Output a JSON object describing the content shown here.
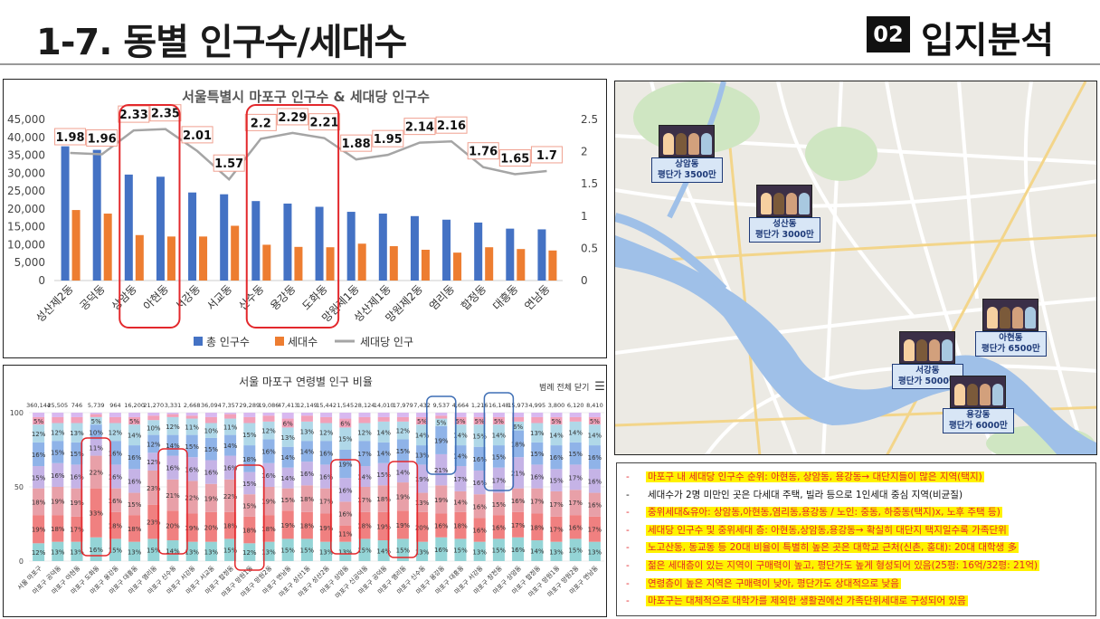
{
  "header": {
    "title": "1-7. 동별 인구수/세대수",
    "badge": "02",
    "section": "입지분석"
  },
  "chart_data": [
    {
      "type": "bar",
      "title": "서울특별시 마포구 인구수 & 세대당 인구수",
      "categories": [
        "성산제2동",
        "공덕동",
        "상암동",
        "아현동",
        "서강동",
        "서교동",
        "신수동",
        "용강동",
        "도화동",
        "망원제1동",
        "성산제1동",
        "망원제2동",
        "염리동",
        "합정동",
        "대흥동",
        "연남동"
      ],
      "series": [
        {
          "name": "총 인구수",
          "color": "#4472c4",
          "values": [
            37500,
            36500,
            29600,
            29000,
            24600,
            24100,
            22200,
            21500,
            20600,
            19200,
            18700,
            18000,
            17000,
            16200,
            14500,
            14300
          ]
        },
        {
          "name": "세대수",
          "color": "#ed7d31",
          "values": [
            19700,
            18700,
            12700,
            12300,
            12300,
            15300,
            10000,
            9400,
            9300,
            10300,
            9600,
            8600,
            7800,
            9300,
            8800,
            8400
          ]
        },
        {
          "name": "세대당 인구",
          "color": "#a5a5a5",
          "axis": "right",
          "values": [
            1.98,
            1.96,
            2.33,
            2.35,
            2.01,
            1.57,
            2.2,
            2.29,
            2.21,
            1.88,
            1.95,
            2.14,
            2.16,
            1.76,
            1.65,
            1.7
          ]
        }
      ],
      "value_labels": [
        "1.98",
        "1.96",
        "2.33",
        "2.35",
        "2.01",
        "1.57",
        "2.2",
        "2.29",
        "2.21",
        "1.88",
        "1.95",
        "2.14",
        "2.16",
        "1.76",
        "1.65",
        "1.7"
      ],
      "ylim": [
        0,
        45000
      ],
      "y_ticks": [
        "0",
        "5,000",
        "10,000",
        "15,000",
        "20,000",
        "25,000",
        "30,000",
        "35,000",
        "40,000",
        "45,000"
      ],
      "y2lim": [
        0,
        2.5
      ],
      "y2_ticks": [
        "0",
        "0.5",
        "1",
        "1.5",
        "2",
        "2.5"
      ],
      "legend": "bottom",
      "highlight_color": "#e3282c"
    },
    {
      "type": "bar",
      "title": "서울 마포구 연령별 인구 비율",
      "button_label": "범례 전체 닫기",
      "y_ticks": [
        "0",
        "50",
        "100"
      ],
      "ylim": [
        0,
        100
      ],
      "categories": [
        "서울 마포구",
        "마포구 공덕동",
        "마포구 아현동",
        "마포구 도화동",
        "마포구 용강동",
        "마포구 대흥동",
        "마포구 염리동",
        "마포구 신수동",
        "마포구 서강동",
        "마포구 서교동",
        "마포구 합정동",
        "마포구 망원1동",
        "마포구 망원2동",
        "마포구 연남동",
        "마포구 성산1동",
        "마포구 성산2동",
        "마포구 상암동",
        "마포구 신공덕동",
        "마포구 공덕동",
        "마포구 염리동",
        "마포구 신수동",
        "마포구 용강동",
        "마포구 대흥동",
        "마포구 서강동",
        "마포구 창전동",
        "마포구 상암동",
        "마포구 합정동",
        "마포구 망원1동",
        "마포구 망원2동",
        "마포구 연남동"
      ],
      "totals": [
        "360,144",
        "25,505",
        "746",
        "5,739",
        "964",
        "16,200",
        "21,270",
        "3,331",
        "2,668",
        "36,094",
        "7,357",
        "29,289",
        "19,086",
        "47,413",
        "12,149",
        "15,442",
        "1,545",
        "28,124",
        "14,010",
        "17,979",
        "7,432",
        "9,537",
        "4,664",
        "1,216",
        "16,148",
        "15,973",
        "4,995",
        "3,800",
        "6,120",
        "8,410"
      ],
      "band_colors": [
        "#94d4d6",
        "#f08080",
        "#e8a0a8",
        "#c5b3e6",
        "#8fb3e8",
        "#b0d8e8",
        "#f2a0b8",
        "#d8b8f0"
      ],
      "series_values": [
        [
          12,
          13,
          13,
          16,
          15,
          13,
          15,
          14,
          13,
          13,
          15,
          12,
          13,
          15,
          15,
          13,
          13,
          15,
          14,
          15,
          13,
          16,
          15,
          13,
          15,
          16,
          14,
          13,
          15,
          13
        ],
        [
          19,
          18,
          17,
          33,
          18,
          18,
          23,
          20,
          19,
          20,
          18,
          18,
          18,
          19,
          18,
          19,
          11,
          18,
          19,
          19,
          20,
          16,
          18,
          16,
          16,
          17,
          18,
          17,
          16,
          17
        ],
        [
          18,
          19,
          19,
          22,
          16,
          15,
          23,
          21,
          22,
          19,
          22,
          15,
          19,
          15,
          18,
          17,
          16,
          17,
          18,
          19,
          13,
          19,
          14,
          16,
          15,
          16,
          17,
          17,
          17,
          16
        ],
        [
          15,
          16,
          16,
          11,
          16,
          16,
          12,
          16,
          16,
          16,
          16,
          15,
          16,
          14,
          16,
          16,
          16,
          14,
          15,
          14,
          19,
          21,
          17,
          16,
          17,
          21,
          16,
          15,
          17,
          16
        ],
        [
          16,
          15,
          15,
          10,
          16,
          16,
          12,
          14,
          15,
          15,
          14,
          18,
          16,
          14,
          14,
          16,
          19,
          17,
          14,
          15,
          13,
          19,
          14,
          16,
          15,
          18,
          15,
          16,
          15,
          16
        ],
        [
          12,
          12,
          13,
          5,
          12,
          14,
          10,
          12,
          11,
          10,
          11,
          15,
          12,
          13,
          13,
          12,
          15,
          12,
          14,
          12,
          14,
          5,
          14,
          15,
          14,
          6,
          13,
          14,
          14,
          14
        ],
        [
          5,
          4,
          4,
          2,
          4,
          5,
          3,
          2,
          2,
          4,
          3,
          4,
          4,
          6,
          4,
          4,
          6,
          4,
          3,
          3,
          5,
          2,
          5,
          5,
          5,
          3,
          4,
          5,
          3,
          5
        ],
        [
          3,
          3,
          3,
          1,
          3,
          3,
          2,
          1,
          2,
          3,
          1,
          3,
          2,
          4,
          2,
          3,
          4,
          3,
          3,
          3,
          3,
          2,
          3,
          3,
          3,
          3,
          3,
          3,
          3,
          3
        ]
      ],
      "highlight_color": "#e3282c"
    }
  ],
  "map": {
    "markers": [
      {
        "name": "상암동",
        "price": "평단가 3500만"
      },
      {
        "name": "성산동",
        "price": "평단가 3000만"
      },
      {
        "name": "아현동",
        "price": "평단가 6500만"
      },
      {
        "name": "서강동",
        "price": "평단가 5000만"
      },
      {
        "name": "용강동",
        "price": "평단가 6000만"
      }
    ]
  },
  "notes": [
    {
      "text": "마포구 내 세대당 인구수 순위: 아현동, 상암동, 용강동→ 대단지들이 많은 지역(택지)",
      "hl": true
    },
    {
      "text": "세대수가 2명 미만인 곳은 다세대 주택, 빌라 등으로 1인세대 중심 지역(비균질)",
      "hl": false
    },
    {
      "text": "중위세대&유아: 상암동,아현동,염리동,용강동  / 노인: 중동, 하중동(택지)x, 노후 주택 등)",
      "hl": true
    },
    {
      "text": "세대당 인구수 및 중위세대 층: 아현동,상암동,용강동→ 확실히 대단지 택지일수록 가족단위",
      "hl": true
    },
    {
      "text": "노고산동, 동교동 등 20대 비율이 특별히 높은 곳은 대학교 근처(신촌, 홍대): 20대 대학생 多",
      "hl": true
    },
    {
      "text": "젊은 세대층이 있는 지역이 구매력이 높고, 평단가도 높게 형성되어 있음(25평: 16억/32평: 21억)",
      "hl": true
    },
    {
      "text": "연령층이 높은 지역은 구매력이 낮아, 평단가도 상대적으로 낮음",
      "hl": true
    },
    {
      "text": "마포구는 대체적으로 대학가를 제외한 생활권에선 가족단위세대로 구성되어 있음",
      "hl": true
    }
  ],
  "note_dash": "-"
}
